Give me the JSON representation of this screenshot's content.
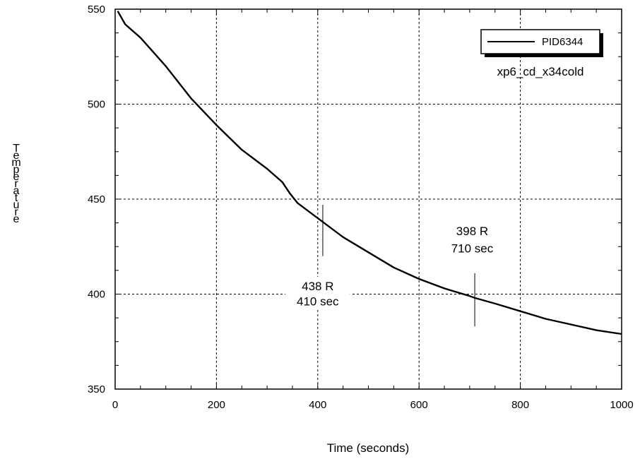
{
  "chart_data": {
    "type": "line",
    "xlabel": "Time (seconds)",
    "ylabel": "Temperature",
    "xlim": [
      0,
      1000
    ],
    "ylim": [
      350,
      550
    ],
    "xticks": [
      0,
      200,
      400,
      600,
      800,
      1000
    ],
    "yticks": [
      350,
      400,
      450,
      500,
      550
    ],
    "grid": true,
    "legend": {
      "placement": "top-right",
      "entries": [
        "PID6344"
      ]
    },
    "subtitle": "xp6_cd_x34cold",
    "series": [
      {
        "name": "PID6344",
        "x": [
          5,
          20,
          50,
          100,
          150,
          200,
          250,
          300,
          330,
          345,
          360,
          400,
          410,
          450,
          500,
          550,
          600,
          650,
          700,
          710,
          750,
          800,
          850,
          900,
          950,
          1000
        ],
        "y": [
          549,
          542,
          535,
          520,
          503,
          489,
          476,
          466,
          459,
          453,
          448,
          440,
          438,
          430,
          422,
          414,
          408,
          403,
          399,
          398,
          395,
          391,
          387,
          384,
          381,
          379
        ]
      }
    ],
    "annotations": [
      {
        "x": 410,
        "y": 438,
        "line_from": 420,
        "line_to": 447,
        "label_line1": "438 R",
        "label_line2": "410 sec",
        "label_x": 400,
        "label_y1": 402,
        "label_y2": 394
      },
      {
        "x": 710,
        "y": 398,
        "line_from": 383,
        "line_to": 411,
        "label_line1": "398 R",
        "label_line2": "710 sec",
        "label_x": 705,
        "label_y1": 431,
        "label_y2": 422
      }
    ]
  }
}
